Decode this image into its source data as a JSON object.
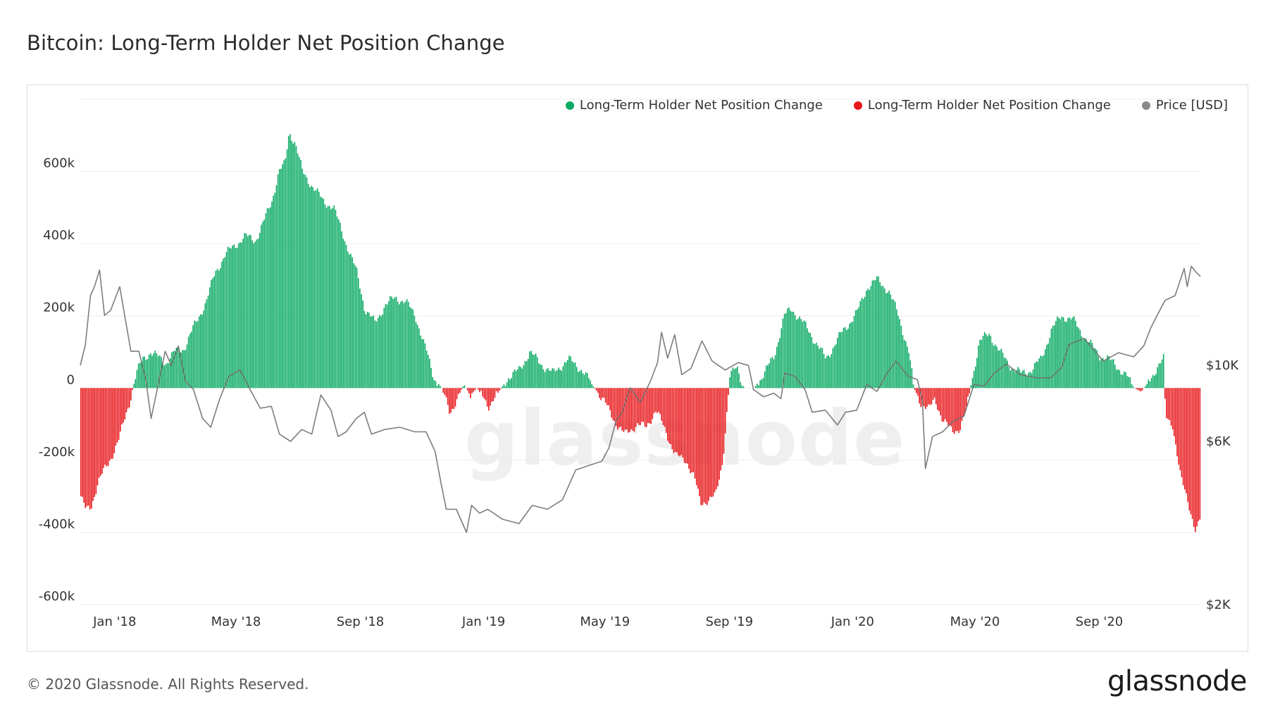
{
  "header": {
    "title": "Bitcoin: Long-Term Holder Net Position Change"
  },
  "legend": {
    "items": [
      {
        "label": "Long-Term Holder Net Position Change",
        "color": "#0aaa63"
      },
      {
        "label": "Long-Term Holder Net Position Change",
        "color": "#e8171b"
      },
      {
        "label": "Price [USD]",
        "color": "#8a8a8a"
      }
    ]
  },
  "footer": {
    "copyright": "© 2020 Glassnode. All Rights Reserved.",
    "brand": "glassnode"
  },
  "watermark": "glassnode",
  "chart_data": {
    "type": "bar",
    "title": "Bitcoin: Long-Term Holder Net Position Change",
    "x_range": [
      "2017-11-28",
      "2020-12-10"
    ],
    "x_ticks": [
      "Jan '18",
      "May '18",
      "Sep '18",
      "Jan '19",
      "May '19",
      "Sep '19",
      "Jan '20",
      "May '20",
      "Sep '20"
    ],
    "x_tick_dates": [
      "2018-01-01",
      "2018-05-01",
      "2018-09-01",
      "2019-01-01",
      "2019-05-01",
      "2019-09-01",
      "2020-01-01",
      "2020-05-01",
      "2020-09-01"
    ],
    "y_left": {
      "ticks": [
        600000,
        400000,
        200000,
        0,
        -200000,
        -400000,
        -600000
      ],
      "tick_labels": [
        "600k",
        "400k",
        "200k",
        "0",
        "-200k",
        "-400k",
        "-600k"
      ],
      "range": [
        -600000,
        800000
      ]
    },
    "y_right": {
      "scale": "log",
      "ticks": [
        10000,
        6000,
        2000
      ],
      "tick_labels": [
        "$10K",
        "$6K",
        "$2K"
      ],
      "range": [
        2000,
        60000
      ]
    },
    "grid": true,
    "legend_position": "top-right",
    "colors": {
      "positive": "#0aaa63",
      "negative": "#e8171b",
      "price": "#8a8a8a"
    },
    "series": [
      {
        "name": "Long-Term Holder Net Position Change",
        "kind": "bar",
        "points": [
          [
            "2017-11-28",
            -300000
          ],
          [
            "2017-12-03",
            -340000
          ],
          [
            "2017-12-08",
            -330000
          ],
          [
            "2017-12-15",
            -260000
          ],
          [
            "2017-12-25",
            -210000
          ],
          [
            "2018-01-05",
            -140000
          ],
          [
            "2018-01-15",
            -40000
          ],
          [
            "2018-01-22",
            40000
          ],
          [
            "2018-01-28",
            80000
          ],
          [
            "2018-02-05",
            100000
          ],
          [
            "2018-02-20",
            70000
          ],
          [
            "2018-03-01",
            100000
          ],
          [
            "2018-03-10",
            110000
          ],
          [
            "2018-03-20",
            170000
          ],
          [
            "2018-04-01",
            240000
          ],
          [
            "2018-04-10",
            320000
          ],
          [
            "2018-04-20",
            370000
          ],
          [
            "2018-05-01",
            400000
          ],
          [
            "2018-05-10",
            420000
          ],
          [
            "2018-05-20",
            410000
          ],
          [
            "2018-05-28",
            460000
          ],
          [
            "2018-06-05",
            520000
          ],
          [
            "2018-06-12",
            600000
          ],
          [
            "2018-06-18",
            620000
          ],
          [
            "2018-06-22",
            710000
          ],
          [
            "2018-06-28",
            680000
          ],
          [
            "2018-07-05",
            600000
          ],
          [
            "2018-07-15",
            560000
          ],
          [
            "2018-07-25",
            520000
          ],
          [
            "2018-08-05",
            500000
          ],
          [
            "2018-08-15",
            420000
          ],
          [
            "2018-08-28",
            320000
          ],
          [
            "2018-09-05",
            220000
          ],
          [
            "2018-09-15",
            180000
          ],
          [
            "2018-09-25",
            230000
          ],
          [
            "2018-10-05",
            250000
          ],
          [
            "2018-10-15",
            240000
          ],
          [
            "2018-10-25",
            200000
          ],
          [
            "2018-11-05",
            100000
          ],
          [
            "2018-11-12",
            30000
          ],
          [
            "2018-11-20",
            0
          ],
          [
            "2018-11-28",
            -70000
          ],
          [
            "2018-12-05",
            -30000
          ],
          [
            "2018-12-12",
            10000
          ],
          [
            "2018-12-18",
            -20000
          ],
          [
            "2018-12-25",
            0
          ],
          [
            "2019-01-05",
            -50000
          ],
          [
            "2019-01-10",
            -30000
          ],
          [
            "2019-01-18",
            0
          ],
          [
            "2019-01-25",
            30000
          ],
          [
            "2019-02-05",
            50000
          ],
          [
            "2019-02-15",
            100000
          ],
          [
            "2019-02-25",
            70000
          ],
          [
            "2019-03-10",
            40000
          ],
          [
            "2019-03-25",
            80000
          ],
          [
            "2019-04-08",
            50000
          ],
          [
            "2019-04-20",
            0
          ],
          [
            "2019-04-28",
            -30000
          ],
          [
            "2019-05-10",
            -90000
          ],
          [
            "2019-05-20",
            -130000
          ],
          [
            "2019-06-01",
            -100000
          ],
          [
            "2019-06-10",
            -110000
          ],
          [
            "2019-06-20",
            -60000
          ],
          [
            "2019-07-01",
            -130000
          ],
          [
            "2019-07-10",
            -190000
          ],
          [
            "2019-07-20",
            -200000
          ],
          [
            "2019-07-28",
            -250000
          ],
          [
            "2019-08-03",
            -320000
          ],
          [
            "2019-08-10",
            -310000
          ],
          [
            "2019-08-18",
            -300000
          ],
          [
            "2019-08-25",
            -200000
          ],
          [
            "2019-09-01",
            30000
          ],
          [
            "2019-09-08",
            60000
          ],
          [
            "2019-09-15",
            0
          ],
          [
            "2019-09-25",
            0
          ],
          [
            "2019-10-05",
            40000
          ],
          [
            "2019-10-15",
            90000
          ],
          [
            "2019-10-25",
            200000
          ],
          [
            "2019-11-01",
            220000
          ],
          [
            "2019-11-10",
            190000
          ],
          [
            "2019-11-20",
            150000
          ],
          [
            "2019-12-05",
            80000
          ],
          [
            "2019-12-20",
            150000
          ],
          [
            "2020-01-05",
            210000
          ],
          [
            "2020-01-15",
            280000
          ],
          [
            "2020-01-25",
            300000
          ],
          [
            "2020-02-05",
            270000
          ],
          [
            "2020-02-15",
            200000
          ],
          [
            "2020-02-25",
            100000
          ],
          [
            "2020-03-01",
            0
          ],
          [
            "2020-03-08",
            -40000
          ],
          [
            "2020-03-16",
            -60000
          ],
          [
            "2020-03-22",
            -30000
          ],
          [
            "2020-03-30",
            -90000
          ],
          [
            "2020-04-08",
            -120000
          ],
          [
            "2020-04-16",
            -110000
          ],
          [
            "2020-04-22",
            -60000
          ],
          [
            "2020-04-28",
            30000
          ],
          [
            "2020-05-05",
            130000
          ],
          [
            "2020-05-15",
            150000
          ],
          [
            "2020-05-25",
            100000
          ],
          [
            "2020-06-05",
            60000
          ],
          [
            "2020-06-15",
            40000
          ],
          [
            "2020-06-25",
            50000
          ],
          [
            "2020-07-05",
            80000
          ],
          [
            "2020-07-15",
            160000
          ],
          [
            "2020-07-25",
            200000
          ],
          [
            "2020-08-05",
            190000
          ],
          [
            "2020-08-20",
            130000
          ],
          [
            "2020-09-01",
            90000
          ],
          [
            "2020-09-15",
            70000
          ],
          [
            "2020-09-28",
            30000
          ],
          [
            "2020-10-05",
            0
          ],
          [
            "2020-10-12",
            -10000
          ],
          [
            "2020-10-20",
            20000
          ],
          [
            "2020-10-28",
            60000
          ],
          [
            "2020-11-03",
            80000
          ],
          [
            "2020-11-05",
            -80000
          ],
          [
            "2020-11-12",
            -100000
          ],
          [
            "2020-11-20",
            -250000
          ],
          [
            "2020-11-28",
            -320000
          ],
          [
            "2020-12-05",
            -400000
          ],
          [
            "2020-12-10",
            -360000
          ]
        ]
      },
      {
        "name": "Price [USD]",
        "kind": "line",
        "axis": "right",
        "points": [
          [
            "2017-11-28",
            10000
          ],
          [
            "2017-12-03",
            11500
          ],
          [
            "2017-12-08",
            16000
          ],
          [
            "2017-12-12",
            17000
          ],
          [
            "2017-12-17",
            19000
          ],
          [
            "2017-12-22",
            14000
          ],
          [
            "2017-12-28",
            14500
          ],
          [
            "2018-01-06",
            17000
          ],
          [
            "2018-01-10",
            14500
          ],
          [
            "2018-01-17",
            11000
          ],
          [
            "2018-01-25",
            11000
          ],
          [
            "2018-02-01",
            9000
          ],
          [
            "2018-02-06",
            7000
          ],
          [
            "2018-02-12",
            8500
          ],
          [
            "2018-02-20",
            11000
          ],
          [
            "2018-02-26",
            10000
          ],
          [
            "2018-03-05",
            11400
          ],
          [
            "2018-03-12",
            9000
          ],
          [
            "2018-03-20",
            8500
          ],
          [
            "2018-03-29",
            7000
          ],
          [
            "2018-04-06",
            6600
          ],
          [
            "2018-04-15",
            8000
          ],
          [
            "2018-04-24",
            9300
          ],
          [
            "2018-05-05",
            9700
          ],
          [
            "2018-05-15",
            8500
          ],
          [
            "2018-05-25",
            7500
          ],
          [
            "2018-06-05",
            7600
          ],
          [
            "2018-06-13",
            6300
          ],
          [
            "2018-06-24",
            6000
          ],
          [
            "2018-07-05",
            6500
          ],
          [
            "2018-07-15",
            6300
          ],
          [
            "2018-07-24",
            8200
          ],
          [
            "2018-08-03",
            7400
          ],
          [
            "2018-08-10",
            6200
          ],
          [
            "2018-08-18",
            6400
          ],
          [
            "2018-08-28",
            7000
          ],
          [
            "2018-09-05",
            7300
          ],
          [
            "2018-09-12",
            6300
          ],
          [
            "2018-09-25",
            6500
          ],
          [
            "2018-10-10",
            6600
          ],
          [
            "2018-10-25",
            6400
          ],
          [
            "2018-11-05",
            6400
          ],
          [
            "2018-11-14",
            5600
          ],
          [
            "2018-11-20",
            4500
          ],
          [
            "2018-11-25",
            3800
          ],
          [
            "2018-12-05",
            3800
          ],
          [
            "2018-12-15",
            3250
          ],
          [
            "2018-12-20",
            3900
          ],
          [
            "2018-12-28",
            3700
          ],
          [
            "2019-01-05",
            3800
          ],
          [
            "2019-01-20",
            3550
          ],
          [
            "2019-02-05",
            3450
          ],
          [
            "2019-02-18",
            3900
          ],
          [
            "2019-03-05",
            3800
          ],
          [
            "2019-03-20",
            4050
          ],
          [
            "2019-04-02",
            4950
          ],
          [
            "2019-04-15",
            5100
          ],
          [
            "2019-04-28",
            5250
          ],
          [
            "2019-05-05",
            5750
          ],
          [
            "2019-05-12",
            6900
          ],
          [
            "2019-05-18",
            7300
          ],
          [
            "2019-05-26",
            8600
          ],
          [
            "2019-06-05",
            7800
          ],
          [
            "2019-06-15",
            9000
          ],
          [
            "2019-06-22",
            10200
          ],
          [
            "2019-06-26",
            12500
          ],
          [
            "2019-07-02",
            10500
          ],
          [
            "2019-07-09",
            12300
          ],
          [
            "2019-07-16",
            9400
          ],
          [
            "2019-07-25",
            9800
          ],
          [
            "2019-08-05",
            11800
          ],
          [
            "2019-08-15",
            10300
          ],
          [
            "2019-08-28",
            9700
          ],
          [
            "2019-09-10",
            10200
          ],
          [
            "2019-09-20",
            10000
          ],
          [
            "2019-09-25",
            8500
          ],
          [
            "2019-10-05",
            8100
          ],
          [
            "2019-10-15",
            8300
          ],
          [
            "2019-10-22",
            8000
          ],
          [
            "2019-10-26",
            9500
          ],
          [
            "2019-11-05",
            9300
          ],
          [
            "2019-11-15",
            8500
          ],
          [
            "2019-11-22",
            7300
          ],
          [
            "2019-12-05",
            7400
          ],
          [
            "2019-12-17",
            6700
          ],
          [
            "2019-12-25",
            7300
          ],
          [
            "2020-01-05",
            7400
          ],
          [
            "2020-01-15",
            8800
          ],
          [
            "2020-01-25",
            8400
          ],
          [
            "2020-02-05",
            9600
          ],
          [
            "2020-02-13",
            10300
          ],
          [
            "2020-02-25",
            9300
          ],
          [
            "2020-03-05",
            9100
          ],
          [
            "2020-03-10",
            7900
          ],
          [
            "2020-03-13",
            5000
          ],
          [
            "2020-03-20",
            6200
          ],
          [
            "2020-03-30",
            6400
          ],
          [
            "2020-04-10",
            6900
          ],
          [
            "2020-04-20",
            7100
          ],
          [
            "2020-04-30",
            8800
          ],
          [
            "2020-05-10",
            8700
          ],
          [
            "2020-05-20",
            9500
          ],
          [
            "2020-06-01",
            10100
          ],
          [
            "2020-06-15",
            9400
          ],
          [
            "2020-07-01",
            9200
          ],
          [
            "2020-07-15",
            9200
          ],
          [
            "2020-07-26",
            9900
          ],
          [
            "2020-08-02",
            11500
          ],
          [
            "2020-08-17",
            12000
          ],
          [
            "2020-09-05",
            10300
          ],
          [
            "2020-09-20",
            10900
          ],
          [
            "2020-10-05",
            10600
          ],
          [
            "2020-10-15",
            11400
          ],
          [
            "2020-10-22",
            12900
          ],
          [
            "2020-11-05",
            15500
          ],
          [
            "2020-11-15",
            16000
          ],
          [
            "2020-11-24",
            19200
          ],
          [
            "2020-11-27",
            17000
          ],
          [
            "2020-12-01",
            19500
          ],
          [
            "2020-12-06",
            18700
          ],
          [
            "2020-12-10",
            18200
          ]
        ]
      }
    ]
  }
}
